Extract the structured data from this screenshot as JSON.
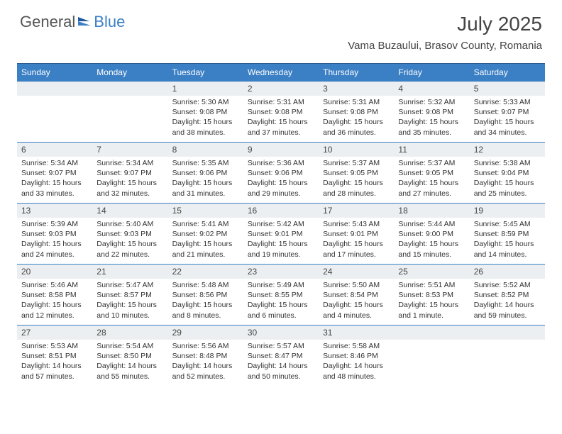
{
  "logo": {
    "general": "General",
    "blue": "Blue"
  },
  "title": "July 2025",
  "location": "Vama Buzaului, Brasov County, Romania",
  "colors": {
    "header_bg": "#3b7fc4",
    "header_text": "#ffffff",
    "daynum_bg": "#eceff1",
    "border": "#3b7fc4",
    "text": "#333333"
  },
  "weekdays": [
    "Sunday",
    "Monday",
    "Tuesday",
    "Wednesday",
    "Thursday",
    "Friday",
    "Saturday"
  ],
  "weeks": [
    [
      null,
      null,
      {
        "n": "1",
        "sr": "5:30 AM",
        "ss": "9:08 PM",
        "dl": "15 hours and 38 minutes."
      },
      {
        "n": "2",
        "sr": "5:31 AM",
        "ss": "9:08 PM",
        "dl": "15 hours and 37 minutes."
      },
      {
        "n": "3",
        "sr": "5:31 AM",
        "ss": "9:08 PM",
        "dl": "15 hours and 36 minutes."
      },
      {
        "n": "4",
        "sr": "5:32 AM",
        "ss": "9:08 PM",
        "dl": "15 hours and 35 minutes."
      },
      {
        "n": "5",
        "sr": "5:33 AM",
        "ss": "9:07 PM",
        "dl": "15 hours and 34 minutes."
      }
    ],
    [
      {
        "n": "6",
        "sr": "5:34 AM",
        "ss": "9:07 PM",
        "dl": "15 hours and 33 minutes."
      },
      {
        "n": "7",
        "sr": "5:34 AM",
        "ss": "9:07 PM",
        "dl": "15 hours and 32 minutes."
      },
      {
        "n": "8",
        "sr": "5:35 AM",
        "ss": "9:06 PM",
        "dl": "15 hours and 31 minutes."
      },
      {
        "n": "9",
        "sr": "5:36 AM",
        "ss": "9:06 PM",
        "dl": "15 hours and 29 minutes."
      },
      {
        "n": "10",
        "sr": "5:37 AM",
        "ss": "9:05 PM",
        "dl": "15 hours and 28 minutes."
      },
      {
        "n": "11",
        "sr": "5:37 AM",
        "ss": "9:05 PM",
        "dl": "15 hours and 27 minutes."
      },
      {
        "n": "12",
        "sr": "5:38 AM",
        "ss": "9:04 PM",
        "dl": "15 hours and 25 minutes."
      }
    ],
    [
      {
        "n": "13",
        "sr": "5:39 AM",
        "ss": "9:03 PM",
        "dl": "15 hours and 24 minutes."
      },
      {
        "n": "14",
        "sr": "5:40 AM",
        "ss": "9:03 PM",
        "dl": "15 hours and 22 minutes."
      },
      {
        "n": "15",
        "sr": "5:41 AM",
        "ss": "9:02 PM",
        "dl": "15 hours and 21 minutes."
      },
      {
        "n": "16",
        "sr": "5:42 AM",
        "ss": "9:01 PM",
        "dl": "15 hours and 19 minutes."
      },
      {
        "n": "17",
        "sr": "5:43 AM",
        "ss": "9:01 PM",
        "dl": "15 hours and 17 minutes."
      },
      {
        "n": "18",
        "sr": "5:44 AM",
        "ss": "9:00 PM",
        "dl": "15 hours and 15 minutes."
      },
      {
        "n": "19",
        "sr": "5:45 AM",
        "ss": "8:59 PM",
        "dl": "15 hours and 14 minutes."
      }
    ],
    [
      {
        "n": "20",
        "sr": "5:46 AM",
        "ss": "8:58 PM",
        "dl": "15 hours and 12 minutes."
      },
      {
        "n": "21",
        "sr": "5:47 AM",
        "ss": "8:57 PM",
        "dl": "15 hours and 10 minutes."
      },
      {
        "n": "22",
        "sr": "5:48 AM",
        "ss": "8:56 PM",
        "dl": "15 hours and 8 minutes."
      },
      {
        "n": "23",
        "sr": "5:49 AM",
        "ss": "8:55 PM",
        "dl": "15 hours and 6 minutes."
      },
      {
        "n": "24",
        "sr": "5:50 AM",
        "ss": "8:54 PM",
        "dl": "15 hours and 4 minutes."
      },
      {
        "n": "25",
        "sr": "5:51 AM",
        "ss": "8:53 PM",
        "dl": "15 hours and 1 minute."
      },
      {
        "n": "26",
        "sr": "5:52 AM",
        "ss": "8:52 PM",
        "dl": "14 hours and 59 minutes."
      }
    ],
    [
      {
        "n": "27",
        "sr": "5:53 AM",
        "ss": "8:51 PM",
        "dl": "14 hours and 57 minutes."
      },
      {
        "n": "28",
        "sr": "5:54 AM",
        "ss": "8:50 PM",
        "dl": "14 hours and 55 minutes."
      },
      {
        "n": "29",
        "sr": "5:56 AM",
        "ss": "8:48 PM",
        "dl": "14 hours and 52 minutes."
      },
      {
        "n": "30",
        "sr": "5:57 AM",
        "ss": "8:47 PM",
        "dl": "14 hours and 50 minutes."
      },
      {
        "n": "31",
        "sr": "5:58 AM",
        "ss": "8:46 PM",
        "dl": "14 hours and 48 minutes."
      },
      null,
      null
    ]
  ],
  "labels": {
    "sunrise": "Sunrise:",
    "sunset": "Sunset:",
    "daylight": "Daylight:"
  }
}
